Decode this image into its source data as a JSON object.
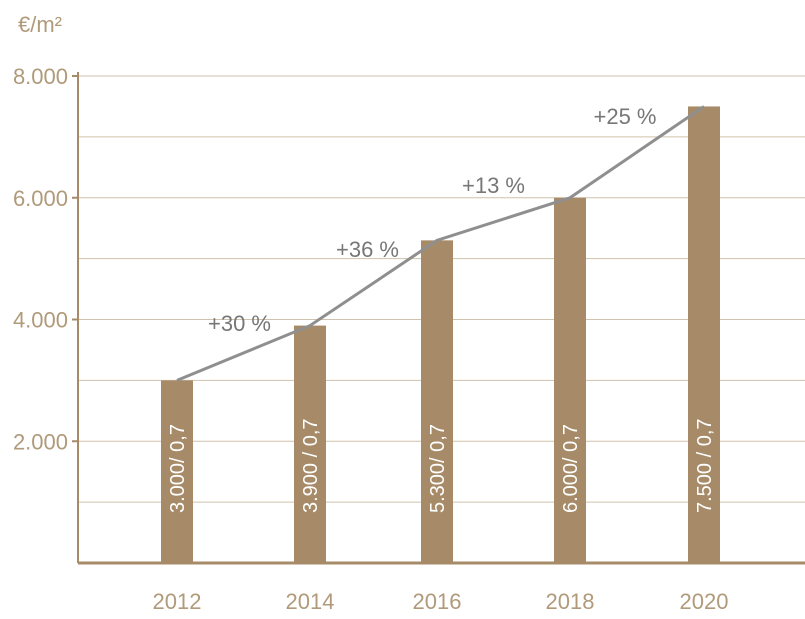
{
  "chart_data": {
    "type": "bar",
    "unit_label": "€/m²",
    "categories": [
      "2012",
      "2014",
      "2016",
      "2018",
      "2020"
    ],
    "values": [
      3000,
      3900,
      5300,
      6000,
      7500
    ],
    "bar_labels": [
      "3.000/ 0,7",
      "3.900 / 0,7",
      "5.300/ 0,7",
      "6.000/ 0,7",
      "7.500 / 0,7"
    ],
    "line_values": [
      3000,
      3900,
      5300,
      6000,
      7500
    ],
    "growth_labels": [
      "+30 %",
      "+36 %",
      "+13 %",
      "+25 %"
    ],
    "yticks": [
      {
        "value": 2000,
        "label": "2.000"
      },
      {
        "value": 4000,
        "label": "4.000"
      },
      {
        "value": 6000,
        "label": "6.000"
      },
      {
        "value": 8000,
        "label": "8.000"
      }
    ],
    "gridlines": [
      1000,
      2000,
      3000,
      4000,
      5000,
      6000,
      7000,
      8000
    ],
    "ylim": [
      0,
      8000
    ],
    "colors": {
      "bar": "#a78b68",
      "line": "#8f8f8f",
      "axis": "#a78b68",
      "grid": "#cfc2ae",
      "tick_text": "#b09a7a",
      "growth_text": "#777777"
    }
  }
}
